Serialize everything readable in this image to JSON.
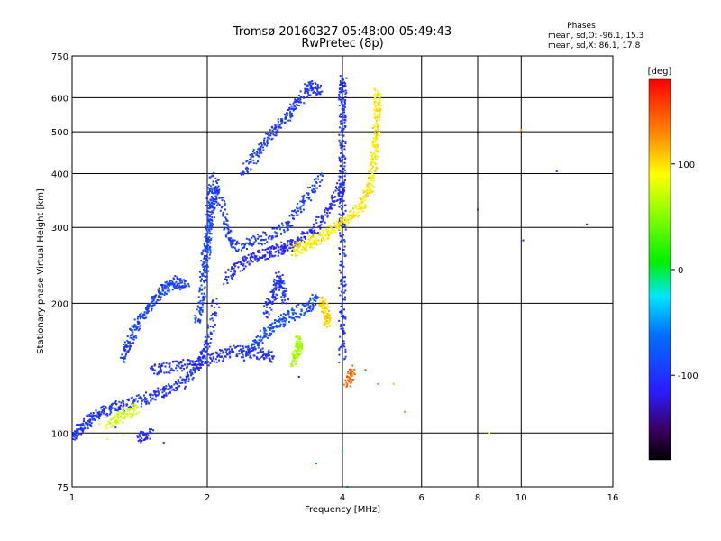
{
  "chart_data": {
    "type": "scatter",
    "title": "Tromsø 20160327 05:48:00-05:49:43",
    "subtitle": "RwPretec (8p)",
    "stats": {
      "heading": "Phases",
      "line_o": "mean, sd,O: -96.1, 15.3",
      "line_x": "mean, sd,X:  86.1, 17.8"
    },
    "xlabel": "Frequency [MHz]",
    "ylabel": "Stationary phase Virtual Height [km]",
    "x_scale": "log2",
    "y_scale": "log",
    "xlim": [
      1,
      16
    ],
    "ylim": [
      75,
      750
    ],
    "grid": true,
    "x_ticks": [
      1,
      2,
      4,
      6,
      8,
      10,
      16
    ],
    "x_tick_labels": [
      "1",
      "2",
      "4",
      "6",
      "8",
      "10",
      "16"
    ],
    "y_ticks": [
      75,
      100,
      200,
      300,
      400,
      500,
      600,
      750
    ],
    "y_tick_labels": [
      "75",
      "100",
      "200",
      "300",
      "400",
      "500",
      "600",
      "750"
    ],
    "colorbar": {
      "label": "[deg]",
      "range": [
        -180,
        180
      ],
      "ticks": [
        100,
        0,
        -100
      ],
      "tick_labels": [
        "100",
        "0",
        "-100"
      ],
      "colormap": "rainbow"
    },
    "series": [
      {
        "mode": "O",
        "phase_mean": -96.1,
        "phase_sd": 15.3,
        "traces": [
          {
            "phase": -100,
            "points": [
              [
                1.0,
                98
              ],
              [
                1.05,
                103
              ],
              [
                1.1,
                108
              ],
              [
                1.18,
                113
              ],
              [
                1.3,
                116
              ],
              [
                1.45,
                120
              ],
              [
                1.6,
                125
              ],
              [
                1.75,
                130
              ],
              [
                1.9,
                142
              ],
              [
                2.0,
                160
              ],
              [
                2.1,
                205
              ]
            ]
          },
          {
            "phase": -108,
            "points": [
              [
                2.2,
                228
              ],
              [
                2.4,
                248
              ],
              [
                2.6,
                258
              ],
              [
                2.8,
                264
              ],
              [
                3.0,
                270
              ],
              [
                3.2,
                280
              ],
              [
                3.5,
                300
              ],
              [
                3.8,
                340
              ],
              [
                4.0,
                380
              ]
            ]
          },
          {
            "phase": -95,
            "points": [
              [
                1.95,
                230
              ],
              [
                2.0,
                280
              ],
              [
                2.05,
                330
              ],
              [
                2.1,
                380
              ],
              [
                2.2,
                300
              ],
              [
                2.3,
                270
              ],
              [
                2.6,
                280
              ],
              [
                3.0,
                300
              ],
              [
                3.3,
                345
              ],
              [
                3.6,
                400
              ]
            ]
          },
          {
            "phase": -90,
            "points": [
              [
                1.9,
                180
              ],
              [
                1.95,
                210
              ],
              [
                2.0,
                260
              ],
              [
                2.02,
                330
              ],
              [
                2.05,
                395
              ]
            ]
          },
          {
            "phase": -102,
            "points": [
              [
                4.0,
                150
              ],
              [
                4.0,
                200
              ],
              [
                4.0,
                280
              ],
              [
                4.0,
                350
              ],
              [
                4.0,
                420
              ],
              [
                4.0,
                520
              ],
              [
                4.0,
                600
              ],
              [
                4.02,
                660
              ]
            ]
          },
          {
            "phase": -98,
            "points": [
              [
                2.4,
                400
              ],
              [
                2.6,
                450
              ],
              [
                2.8,
                500
              ],
              [
                3.0,
                540
              ],
              [
                3.2,
                590
              ],
              [
                3.4,
                640
              ],
              [
                3.6,
                620
              ]
            ]
          },
          {
            "phase": -85,
            "points": [
              [
                2.4,
                150
              ],
              [
                2.6,
                165
              ],
              [
                2.8,
                175
              ],
              [
                3.0,
                185
              ],
              [
                3.3,
                195
              ],
              [
                3.5,
                205
              ]
            ]
          },
          {
            "phase": -92,
            "points": [
              [
                1.3,
                150
              ],
              [
                1.35,
                165
              ],
              [
                1.4,
                180
              ],
              [
                1.5,
                200
              ],
              [
                1.6,
                215
              ],
              [
                1.7,
                225
              ],
              [
                1.8,
                220
              ]
            ]
          },
          {
            "phase": -105,
            "points": [
              [
                1.5,
                140
              ],
              [
                1.7,
                143
              ],
              [
                1.9,
                145
              ],
              [
                2.1,
                150
              ],
              [
                2.3,
                155
              ],
              [
                2.6,
                153
              ],
              [
                2.8,
                150
              ]
            ]
          },
          {
            "phase": -110,
            "points": [
              [
                1.4,
                97
              ],
              [
                1.5,
                100
              ]
            ]
          },
          {
            "phase": -100,
            "points": [
              [
                2.7,
                190
              ],
              [
                2.8,
                210
              ],
              [
                2.9,
                230
              ],
              [
                3.0,
                200
              ]
            ]
          }
        ]
      },
      {
        "mode": "X",
        "phase_mean": 86.1,
        "phase_sd": 17.8,
        "traces": [
          {
            "phase": 95,
            "points": [
              [
                3.1,
                265
              ],
              [
                3.3,
                272
              ],
              [
                3.5,
                282
              ],
              [
                3.8,
                295
              ],
              [
                4.1,
                312
              ],
              [
                4.4,
                335
              ],
              [
                4.6,
                370
              ],
              [
                4.7,
                420
              ],
              [
                4.75,
                480
              ],
              [
                4.78,
                550
              ],
              [
                4.8,
                620
              ]
            ]
          },
          {
            "phase": 75,
            "points": [
              [
                1.2,
                105
              ],
              [
                1.3,
                110
              ],
              [
                1.4,
                115
              ]
            ]
          },
          {
            "phase": 60,
            "points": [
              [
                3.1,
                145
              ],
              [
                3.2,
                155
              ],
              [
                3.2,
                165
              ]
            ]
          },
          {
            "phase": 105,
            "points": [
              [
                3.7,
                180
              ],
              [
                3.7,
                190
              ],
              [
                3.6,
                205
              ]
            ]
          },
          {
            "phase": 140,
            "points": [
              [
                4.2,
                140
              ],
              [
                4.1,
                130
              ]
            ]
          }
        ]
      },
      {
        "mode": "scattered",
        "points": [
          [
            1.05,
            102,
            -95
          ],
          [
            1.2,
            97,
            95
          ],
          [
            1.3,
            99,
            90
          ],
          [
            1.45,
            98,
            95
          ],
          [
            1.6,
            95,
            -105
          ],
          [
            1.08,
            110,
            -100
          ],
          [
            1.25,
            103,
            -100
          ],
          [
            1.15,
            105,
            85
          ],
          [
            4.0,
            90,
            -15
          ],
          [
            4.1,
            75,
            -20
          ],
          [
            4.5,
            140,
            165
          ],
          [
            4.8,
            130,
            140
          ],
          [
            5.2,
            130,
            110
          ],
          [
            5.5,
            112,
            130
          ],
          [
            8.0,
            330,
            -110
          ],
          [
            8.5,
            100,
            90
          ],
          [
            10.0,
            505,
            120
          ],
          [
            10.1,
            280,
            -115
          ],
          [
            12.0,
            405,
            -100
          ],
          [
            14.0,
            305,
            -105
          ],
          [
            3.5,
            85,
            -60
          ],
          [
            3.2,
            135,
            -130
          ]
        ]
      }
    ]
  }
}
